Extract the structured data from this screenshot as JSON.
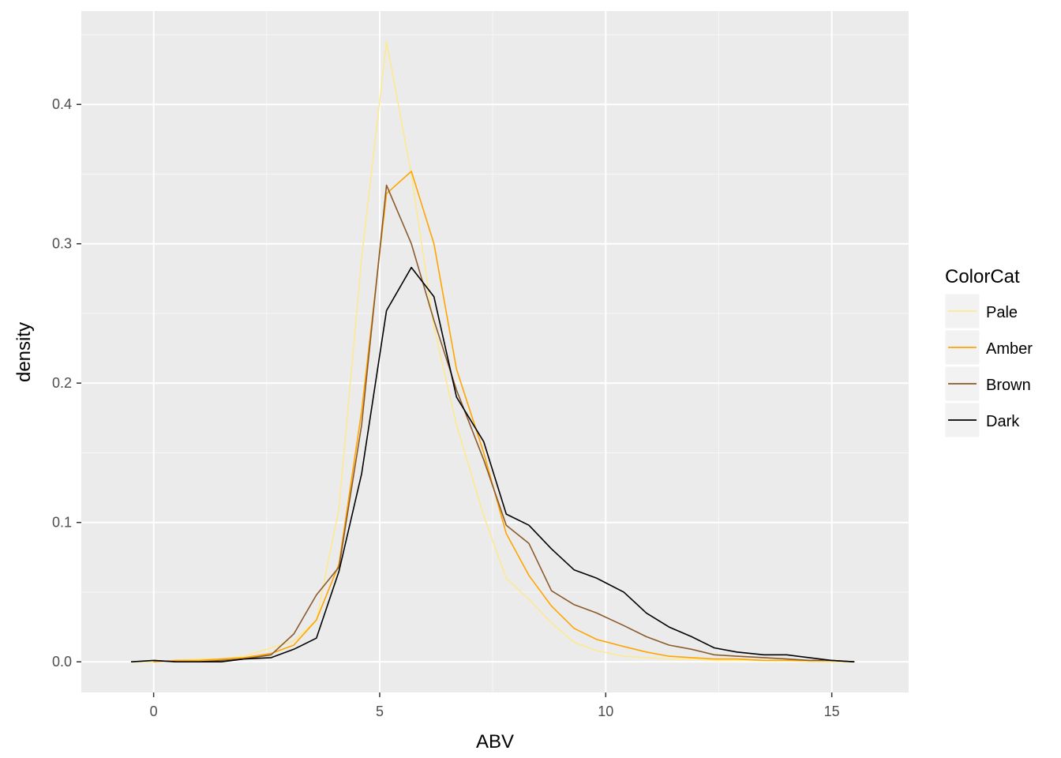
{
  "chart_data": {
    "type": "line",
    "title": "",
    "xlabel": "ABV",
    "ylabel": "density",
    "xlim": [
      -1.6,
      16.7
    ],
    "ylim": [
      -0.022,
      0.467
    ],
    "x_ticks": [
      0,
      5,
      10,
      15
    ],
    "x_tick_labels": [
      "0",
      "5",
      "10",
      "15"
    ],
    "y_ticks": [
      0.0,
      0.1,
      0.2,
      0.3,
      0.4
    ],
    "y_tick_labels": [
      "0.0",
      "0.1",
      "0.2",
      "0.3",
      "0.4"
    ],
    "grid": true,
    "legend": {
      "title": "ColorCat",
      "position": "right"
    },
    "series": [
      {
        "name": "Pale",
        "color": "#fde992",
        "x": [
          -0.5,
          0.0,
          0.5,
          1.0,
          1.5,
          2.0,
          2.6,
          3.1,
          3.6,
          4.1,
          4.6,
          5.15,
          5.7,
          6.2,
          6.7,
          7.3,
          7.8,
          8.3,
          8.8,
          9.3,
          9.8,
          10.4,
          10.9,
          11.4,
          11.9,
          12.4,
          12.9,
          13.5,
          14.0,
          14.5,
          15.0,
          15.5
        ],
        "y": [
          0.0,
          0.0,
          0.001,
          0.002,
          0.002,
          0.004,
          0.01,
          0.015,
          0.03,
          0.11,
          0.29,
          0.445,
          0.35,
          0.24,
          0.17,
          0.105,
          0.06,
          0.045,
          0.028,
          0.014,
          0.008,
          0.004,
          0.003,
          0.002,
          0.002,
          0.001,
          0.001,
          0.001,
          0.001,
          0.0,
          0.0,
          0.0
        ]
      },
      {
        "name": "Amber",
        "color": "#ffa500",
        "x": [
          0.0,
          0.5,
          1.0,
          1.5,
          2.0,
          2.6,
          3.1,
          3.6,
          4.1,
          4.6,
          5.15,
          5.7,
          6.2,
          6.7,
          7.3,
          7.8,
          8.3,
          8.8,
          9.3,
          9.8,
          10.4,
          10.9,
          11.4,
          11.9,
          12.4,
          12.9,
          13.5,
          14.0,
          14.5,
          15.0,
          15.5
        ],
        "y": [
          0.0,
          0.001,
          0.001,
          0.002,
          0.003,
          0.006,
          0.012,
          0.03,
          0.07,
          0.18,
          0.336,
          0.352,
          0.3,
          0.21,
          0.15,
          0.092,
          0.062,
          0.04,
          0.024,
          0.016,
          0.011,
          0.007,
          0.004,
          0.003,
          0.002,
          0.002,
          0.001,
          0.001,
          0.001,
          0.001,
          0.0
        ]
      },
      {
        "name": "Brown",
        "color": "#8b5a2b",
        "x": [
          0.0,
          0.5,
          1.0,
          1.5,
          2.0,
          2.6,
          3.1,
          3.6,
          4.1,
          4.6,
          5.15,
          5.7,
          6.2,
          6.7,
          7.3,
          7.8,
          8.3,
          8.8,
          9.3,
          9.8,
          10.4,
          10.9,
          11.4,
          11.9,
          12.4,
          12.9,
          13.5,
          14.0,
          14.5,
          15.0,
          15.5
        ],
        "y": [
          0.001,
          0.0,
          0.0,
          0.001,
          0.002,
          0.005,
          0.02,
          0.048,
          0.068,
          0.17,
          0.342,
          0.3,
          0.245,
          0.195,
          0.145,
          0.098,
          0.085,
          0.051,
          0.041,
          0.035,
          0.026,
          0.018,
          0.012,
          0.009,
          0.005,
          0.004,
          0.003,
          0.002,
          0.001,
          0.001,
          0.0
        ]
      },
      {
        "name": "Dark",
        "color": "#000000",
        "x": [
          -0.5,
          0.0,
          0.5,
          1.0,
          1.5,
          2.0,
          2.6,
          3.1,
          3.6,
          4.1,
          4.6,
          5.15,
          5.7,
          6.2,
          6.7,
          7.3,
          7.8,
          8.3,
          8.8,
          9.3,
          9.8,
          10.4,
          10.9,
          11.4,
          11.9,
          12.4,
          12.9,
          13.5,
          14.0,
          14.5,
          15.0,
          15.5
        ],
        "y": [
          0.0,
          0.001,
          0.0,
          0.0,
          0.0,
          0.002,
          0.003,
          0.009,
          0.017,
          0.065,
          0.135,
          0.252,
          0.283,
          0.262,
          0.19,
          0.158,
          0.106,
          0.098,
          0.081,
          0.066,
          0.06,
          0.05,
          0.035,
          0.025,
          0.018,
          0.01,
          0.007,
          0.005,
          0.005,
          0.003,
          0.001,
          0.0
        ]
      }
    ]
  }
}
